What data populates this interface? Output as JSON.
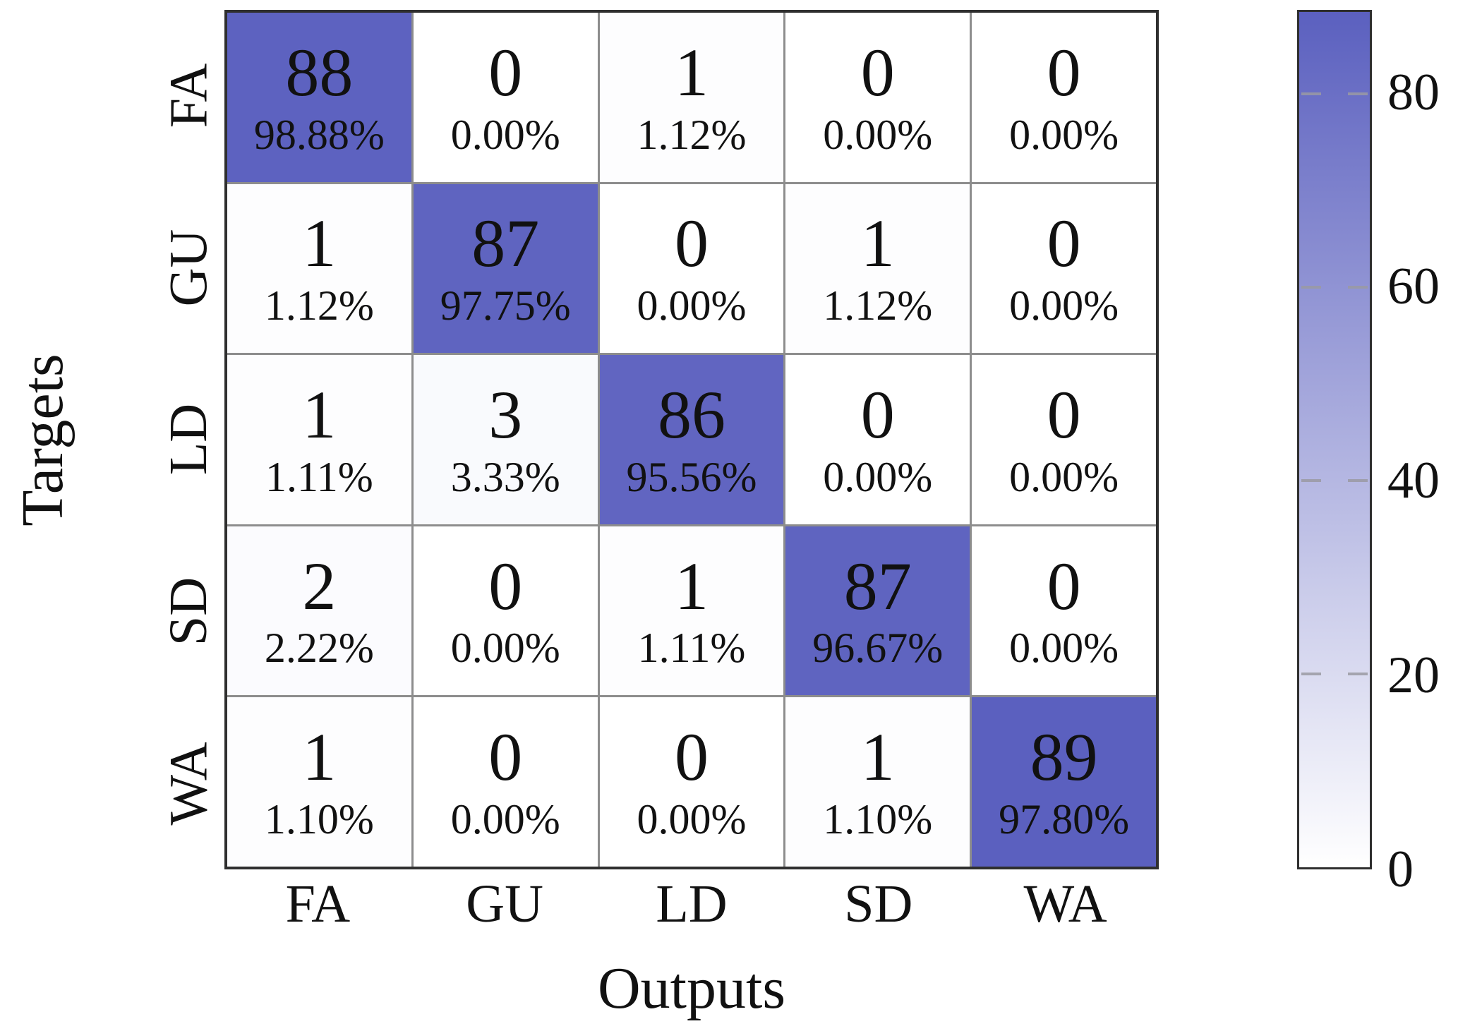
{
  "chart_data": {
    "type": "heatmap",
    "subtype": "confusion-matrix",
    "title": "",
    "xlabel": "Outputs",
    "ylabel": "Targets",
    "x_categories": [
      "FA",
      "GU",
      "LD",
      "SD",
      "WA"
    ],
    "y_categories": [
      "FA",
      "GU",
      "LD",
      "SD",
      "WA"
    ],
    "rows": [
      {
        "target": "FA",
        "counts": [
          88,
          0,
          1,
          0,
          0
        ],
        "percents": [
          "98.88%",
          "0.00%",
          "1.12%",
          "0.00%",
          "0.00%"
        ]
      },
      {
        "target": "GU",
        "counts": [
          1,
          87,
          0,
          1,
          0
        ],
        "percents": [
          "1.12%",
          "97.75%",
          "0.00%",
          "1.12%",
          "0.00%"
        ]
      },
      {
        "target": "LD",
        "counts": [
          1,
          3,
          86,
          0,
          0
        ],
        "percents": [
          "1.11%",
          "3.33%",
          "95.56%",
          "0.00%",
          "0.00%"
        ]
      },
      {
        "target": "SD",
        "counts": [
          2,
          0,
          1,
          87,
          0
        ],
        "percents": [
          "2.22%",
          "0.00%",
          "1.11%",
          "96.67%",
          "0.00%"
        ]
      },
      {
        "target": "WA",
        "counts": [
          1,
          0,
          0,
          1,
          89
        ],
        "percents": [
          "1.10%",
          "0.00%",
          "0.00%",
          "1.10%",
          "97.80%"
        ]
      }
    ],
    "colorbar": {
      "min": 0,
      "max": 89,
      "ticks": [
        80,
        60,
        40,
        20,
        0
      ],
      "color_high": "#5b60bf",
      "color_low": "#ffffff"
    }
  }
}
